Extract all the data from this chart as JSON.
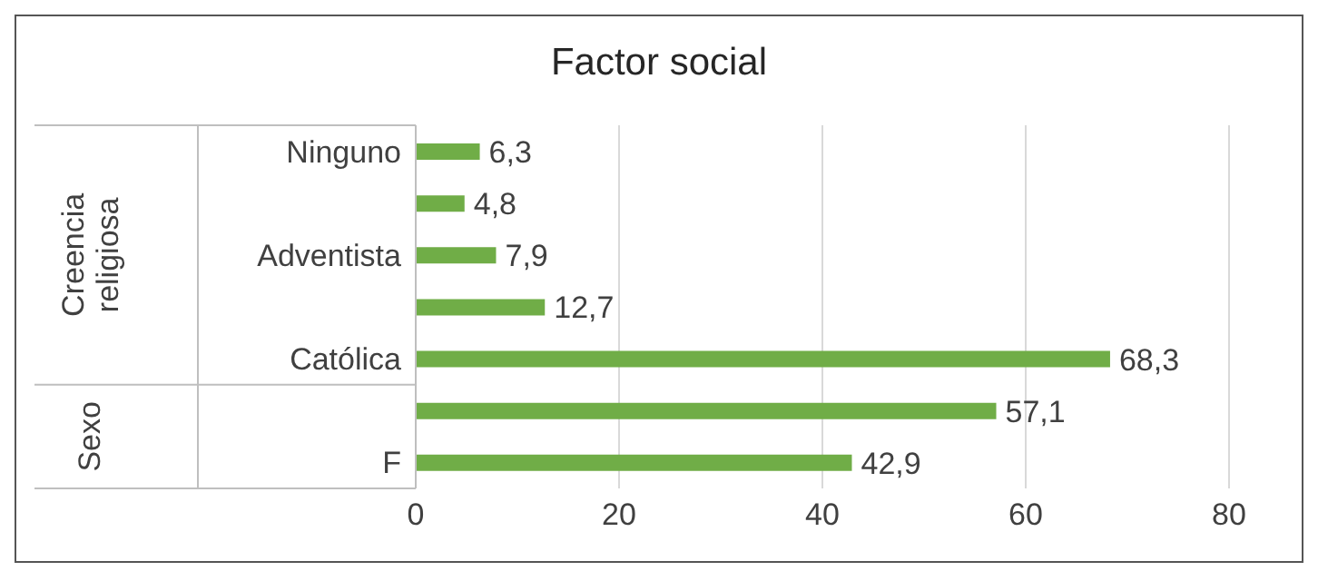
{
  "chart_data": {
    "type": "bar",
    "orientation": "horizontal",
    "title": "Factor social",
    "categories": [
      "Ninguno",
      null,
      "Adventista",
      null,
      "Católica",
      null,
      "F"
    ],
    "values": [
      6.3,
      4.8,
      7.9,
      12.7,
      68.3,
      57.1,
      42.9
    ],
    "value_labels": [
      "6,3",
      "4,8",
      "7,9",
      "12,7",
      "68,3",
      "57,1",
      "42,9"
    ],
    "color": "#70ad47",
    "xlim": [
      0,
      80
    ],
    "xticks": [
      0,
      20,
      40,
      60,
      80
    ],
    "grid": "x",
    "annotations": [
      "Creencia religiosa",
      "Sexo"
    ]
  }
}
